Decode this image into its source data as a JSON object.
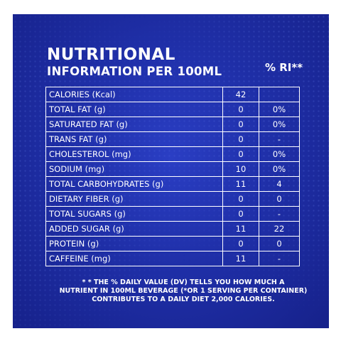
{
  "header": {
    "title": "NUTRITIONAL",
    "subtitle": "INFORMATION PER 100ML",
    "ri_label": "% RI**"
  },
  "rows": [
    {
      "name": "CALORIES (Kcal)",
      "value": "42",
      "ri": ""
    },
    {
      "name": "TOTAL FAT (g)",
      "value": "0",
      "ri": "0%"
    },
    {
      "name": "SATURATED FAT (g)",
      "value": "0",
      "ri": "0%"
    },
    {
      "name": "TRANS FAT (g)",
      "value": "0",
      "ri": "-"
    },
    {
      "name": "CHOLESTEROL  (mg)",
      "value": "0",
      "ri": "0%"
    },
    {
      "name": "SODIUM (mg)",
      "value": "10",
      "ri": "0%"
    },
    {
      "name": "TOTAL CARBOHYDRATES (g)",
      "value": "11",
      "ri": "4"
    },
    {
      "name": "DIETARY FIBER (g)",
      "value": "0",
      "ri": "0"
    },
    {
      "name": "TOTAL SUGARS (g)",
      "value": "0",
      "ri": "-"
    },
    {
      "name": "ADDED SUGAR (g)",
      "value": "11",
      "ri": "22"
    },
    {
      "name": "PROTEIN (g)",
      "value": "0",
      "ri": "0"
    },
    {
      "name": "CAFFEINE (mg)",
      "value": "11",
      "ri": "-"
    }
  ],
  "footnote": {
    "line1": "* * THE % DAILY VALUE (DV) TELLS YOU HOW MUCH A",
    "line2": "NUTRIENT IN 100ML BEVERAGE (*OR 1 SERVING PER CONTAINER)",
    "line3": "CONTRIBUTES TO A DAILY DIET 2,000 CALORIES."
  },
  "colors": {
    "background": "#1f2fa8",
    "text": "#ffffff",
    "page": "#ffffff"
  }
}
